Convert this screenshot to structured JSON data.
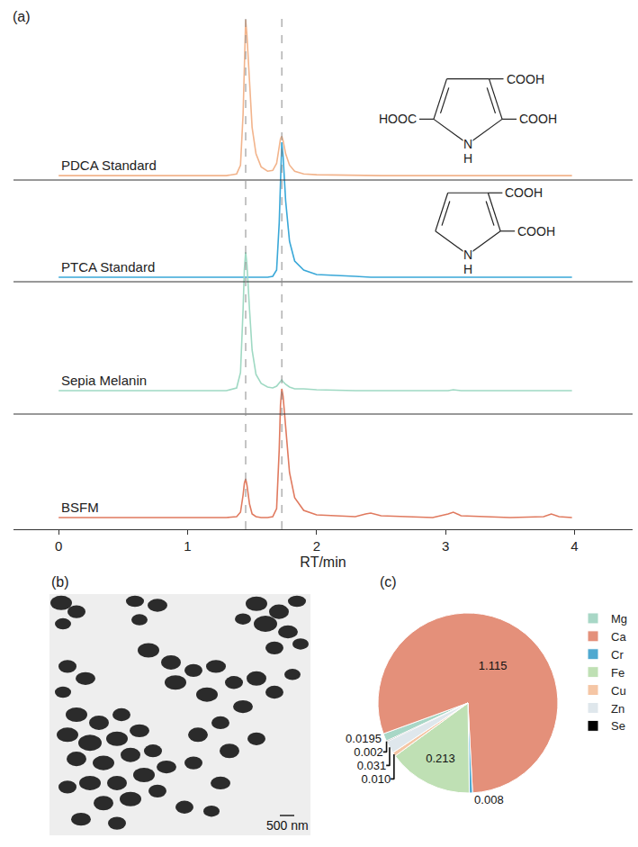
{
  "chart_data": [
    {
      "panel": "(a)",
      "type": "line",
      "x_label": "RT/min",
      "xlim": [
        -0.35,
        4.45
      ],
      "xticks": [
        0,
        1,
        2,
        3,
        4
      ],
      "tick_labels": "x",
      "grid": false,
      "dashed_lines_x": [
        1.45,
        1.73
      ],
      "x": [
        0,
        0.5,
        1.0,
        1.3,
        1.38,
        1.41,
        1.43,
        1.44,
        1.45,
        1.46,
        1.48,
        1.5,
        1.53,
        1.57,
        1.62,
        1.66,
        1.69,
        1.71,
        1.72,
        1.73,
        1.74,
        1.76,
        1.79,
        1.83,
        1.9,
        2.0,
        2.3,
        2.38,
        2.42,
        2.5,
        2.9,
        3.02,
        3.06,
        3.12,
        3.5,
        3.76,
        3.82,
        3.88,
        3.98
      ],
      "series": [
        {
          "name": "PDCA Standard",
          "color": "#f2b48c",
          "ylim": [
            -5,
            183
          ],
          "values": [
            0,
            0,
            0,
            0,
            2,
            12,
            70,
            140,
            178,
            160,
            100,
            55,
            25,
            10,
            5,
            6,
            14,
            32,
            42,
            45,
            40,
            25,
            12,
            5,
            2,
            1,
            0,
            0,
            0,
            0,
            0,
            0,
            0,
            0,
            0,
            0,
            0,
            0,
            0
          ],
          "structure": {
            "substituents": [
              "COOH",
              "COOH",
              "HOOC"
            ],
            "ring_atom": "N",
            "ring_h": "H"
          }
        },
        {
          "name": "PTCA Standard",
          "color": "#3aa8d8",
          "ylim": [
            -5,
            291
          ],
          "values": [
            0,
            0,
            0,
            0,
            0,
            0,
            0,
            0,
            0,
            0,
            0,
            0,
            0,
            0,
            0,
            1,
            8,
            60,
            120,
            150,
            135,
            85,
            40,
            18,
            8,
            3,
            1,
            0,
            0,
            0,
            0,
            0,
            0,
            0,
            0,
            0,
            0,
            0,
            0
          ],
          "structure": {
            "substituents": [
              "COOH",
              "COOH"
            ],
            "ring_atom": "N",
            "ring_h": "H"
          }
        },
        {
          "name": "Sepia Melanin",
          "color": "#9fd9c3",
          "ylim": [
            -26,
            417
          ],
          "values": [
            0,
            0,
            0,
            0,
            3,
            20,
            90,
            135,
            154,
            140,
            90,
            45,
            18,
            8,
            4,
            3,
            5,
            9,
            11,
            12,
            10,
            7,
            4,
            2,
            2,
            1,
            0,
            0,
            0,
            0,
            0,
            0,
            1,
            0,
            0,
            0,
            0,
            0,
            0
          ]
        },
        {
          "name": "BSFM",
          "color": "#e07a5f",
          "ylim": [
            -13,
            558
          ],
          "values": [
            0,
            0,
            0,
            0,
            1,
            6,
            25,
            38,
            43,
            36,
            15,
            4,
            1,
            0,
            0,
            1,
            10,
            75,
            125,
            143,
            135,
            100,
            50,
            22,
            8,
            3,
            1,
            4,
            5,
            2,
            0,
            4,
            6,
            2,
            0,
            1,
            4,
            1,
            0
          ]
        }
      ]
    },
    {
      "panel": "(b)",
      "type": "image",
      "scale_bar": "500 nm"
    },
    {
      "panel": "(c)",
      "type": "pie",
      "categories": [
        "Mg",
        "Ca",
        "Cr",
        "Fe",
        "Cu",
        "Zn",
        "Se"
      ],
      "values": [
        0.0195,
        1.115,
        0.008,
        0.213,
        0.01,
        0.031,
        0.002
      ],
      "value_labels": [
        "0.0195",
        "1.115",
        "0.008",
        "0.213",
        "0.010",
        "0.031",
        "0.002"
      ],
      "colors": [
        "#a8d7c6",
        "#e4907a",
        "#4fa9d0",
        "#bfe0b4",
        "#f5c6a5",
        "#dfe7ec",
        "#000000"
      ],
      "data_labels": true,
      "legend": "right"
    }
  ]
}
